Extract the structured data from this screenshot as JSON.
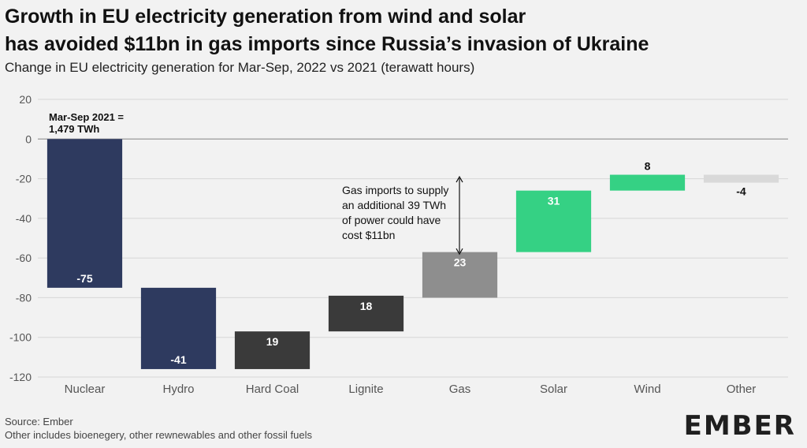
{
  "title_line1": "Growth in EU electricity generation from wind and solar",
  "title_line2": "has avoided $11bn in gas imports since Russia’s invasion of Ukraine",
  "subtitle": "Change in EU electricity generation for Mar-Sep, 2022 vs 2021 (terawatt hours)",
  "source": "Source: Ember",
  "note": "Other includes bioenegery, other rewnewables and other fossil fuels",
  "logo": "EMBER",
  "chart_data": {
    "type": "waterfall",
    "ylim": [
      -120,
      20
    ],
    "yticks": [
      20,
      0,
      -20,
      -40,
      -60,
      -80,
      -100,
      -120
    ],
    "grid": true,
    "baseline_label": [
      "Mar-Sep 2021 =",
      "1,479 TWh"
    ],
    "annotation": [
      "Gas imports to supply",
      "an additional 39 TWh",
      "of power could have",
      "cost $11bn"
    ],
    "annotation_span": [
      -19,
      -58
    ],
    "bars": [
      {
        "category": "Nuclear",
        "value": -75,
        "label": "-75",
        "start": 0,
        "end": -75,
        "color": "#2e3a5f",
        "label_pos": "inside-bottom"
      },
      {
        "category": "Hydro",
        "value": -41,
        "label": "-41",
        "start": -75,
        "end": -116,
        "color": "#2e3a5f",
        "label_pos": "inside-bottom"
      },
      {
        "category": "Hard Coal",
        "value": 19,
        "label": "19",
        "start": -116,
        "end": -97,
        "color": "#3a3a3a",
        "label_pos": "inside-top"
      },
      {
        "category": "Lignite",
        "value": 18,
        "label": "18",
        "start": -97,
        "end": -79,
        "color": "#3a3a3a",
        "label_pos": "inside-top"
      },
      {
        "category": "Gas",
        "value": 23,
        "label": "23",
        "start": -80,
        "end": -57,
        "color": "#8e8e8e",
        "label_pos": "inside-top"
      },
      {
        "category": "Solar",
        "value": 31,
        "label": "31",
        "start": -57,
        "end": -26,
        "color": "#35d184",
        "label_pos": "inside-top"
      },
      {
        "category": "Wind",
        "value": 8,
        "label": "8",
        "start": -26,
        "end": -18,
        "color": "#35d184",
        "label_pos": "above"
      },
      {
        "category": "Other",
        "value": -4,
        "label": "-4",
        "start": -18,
        "end": -22,
        "color": "#d9d9d9",
        "label_pos": "below"
      }
    ]
  }
}
